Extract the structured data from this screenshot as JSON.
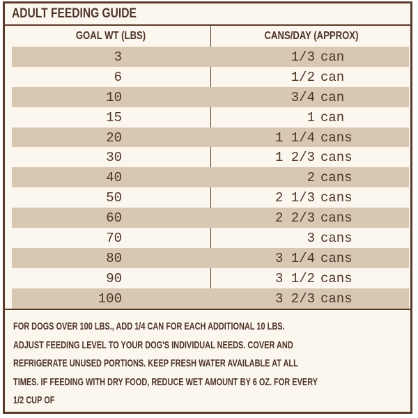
{
  "header": {
    "title": "ADULT FEEDING GUIDE"
  },
  "table": {
    "columns": [
      "GOAL WT (LBS)",
      "CANS/DAY (APPROX)"
    ],
    "rows": [
      [
        "3",
        "1/3",
        "can"
      ],
      [
        "6",
        "1/2",
        "can"
      ],
      [
        "10",
        "3/4",
        "can"
      ],
      [
        "15",
        "1",
        "can"
      ],
      [
        "20",
        "1 1/4",
        "cans"
      ],
      [
        "30",
        "1 2/3",
        "cans"
      ],
      [
        "40",
        "2",
        "cans"
      ],
      [
        "50",
        "2 1/3",
        "cans"
      ],
      [
        "60",
        "2 2/3",
        "cans"
      ],
      [
        "70",
        "3",
        "cans"
      ],
      [
        "80",
        "3 1/4",
        "cans"
      ],
      [
        "90",
        "3 1/2",
        "cans"
      ],
      [
        "100",
        "3 2/3",
        "cans"
      ]
    ]
  },
  "notes": [
    "FOR DOGS OVER 100 LBS., ADD 1/4 CAN FOR EACH ADDITIONAL 10 LBS.",
    "ADJUST FEEDING LEVEL TO YOUR DOG'S INDIVIDUAL NEEDS. COVER AND",
    "REFRIGERATE UNUSED PORTIONS. KEEP FRESH WATER AVAILABLE AT ALL",
    "TIMES. IF FEEDING WITH DRY FOOD, REDUCE WET AMOUNT BY 6 OZ. FOR EVERY",
    "1/2 CUP OF"
  ]
}
